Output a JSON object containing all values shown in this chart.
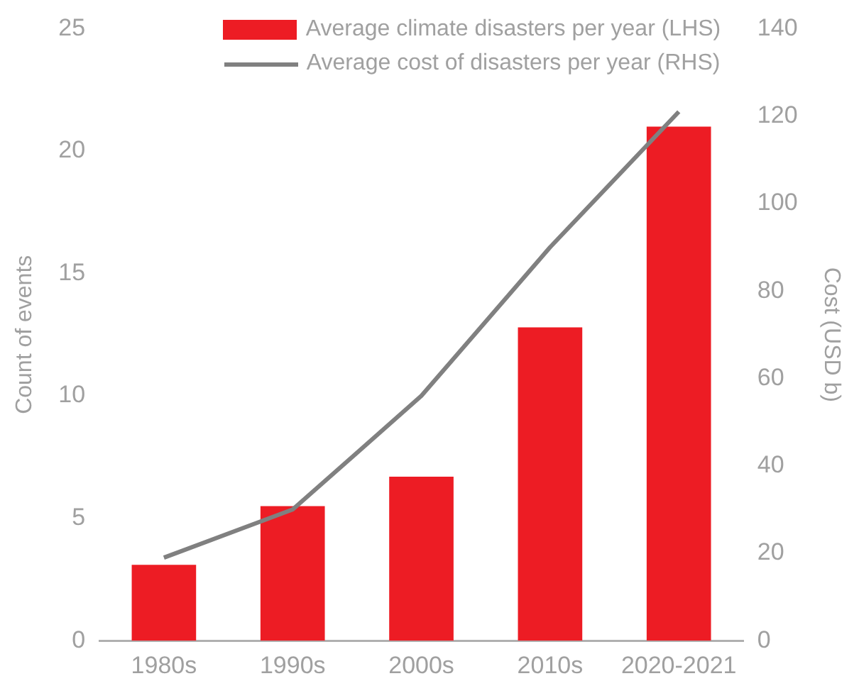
{
  "chart_data": {
    "type": "bar",
    "categories": [
      "1980s",
      "1990s",
      "2000s",
      "2010s",
      "2020-2021"
    ],
    "series": [
      {
        "name": "Average climate disasters per year (LHS)",
        "color": "#ed1c24",
        "values": [
          3.1,
          5.5,
          6.7,
          12.8,
          21.0
        ]
      },
      {
        "name": "Average cost of disasters per year (RHS)",
        "type": "line",
        "axis": "y2",
        "color": "#808080",
        "values": [
          19,
          30,
          56,
          90,
          121
        ]
      }
    ],
    "ylabel": "Count of events",
    "y2label": "Cost (USD b)",
    "ylim": [
      0,
      25
    ],
    "yticks": [
      0,
      5,
      10,
      15,
      20,
      25
    ],
    "y2lim": [
      0,
      140
    ],
    "y2ticks": [
      0,
      20,
      40,
      60,
      80,
      100,
      120,
      140
    ],
    "grid": false,
    "legend": "top",
    "marker": "none",
    "line_style": "solid"
  }
}
